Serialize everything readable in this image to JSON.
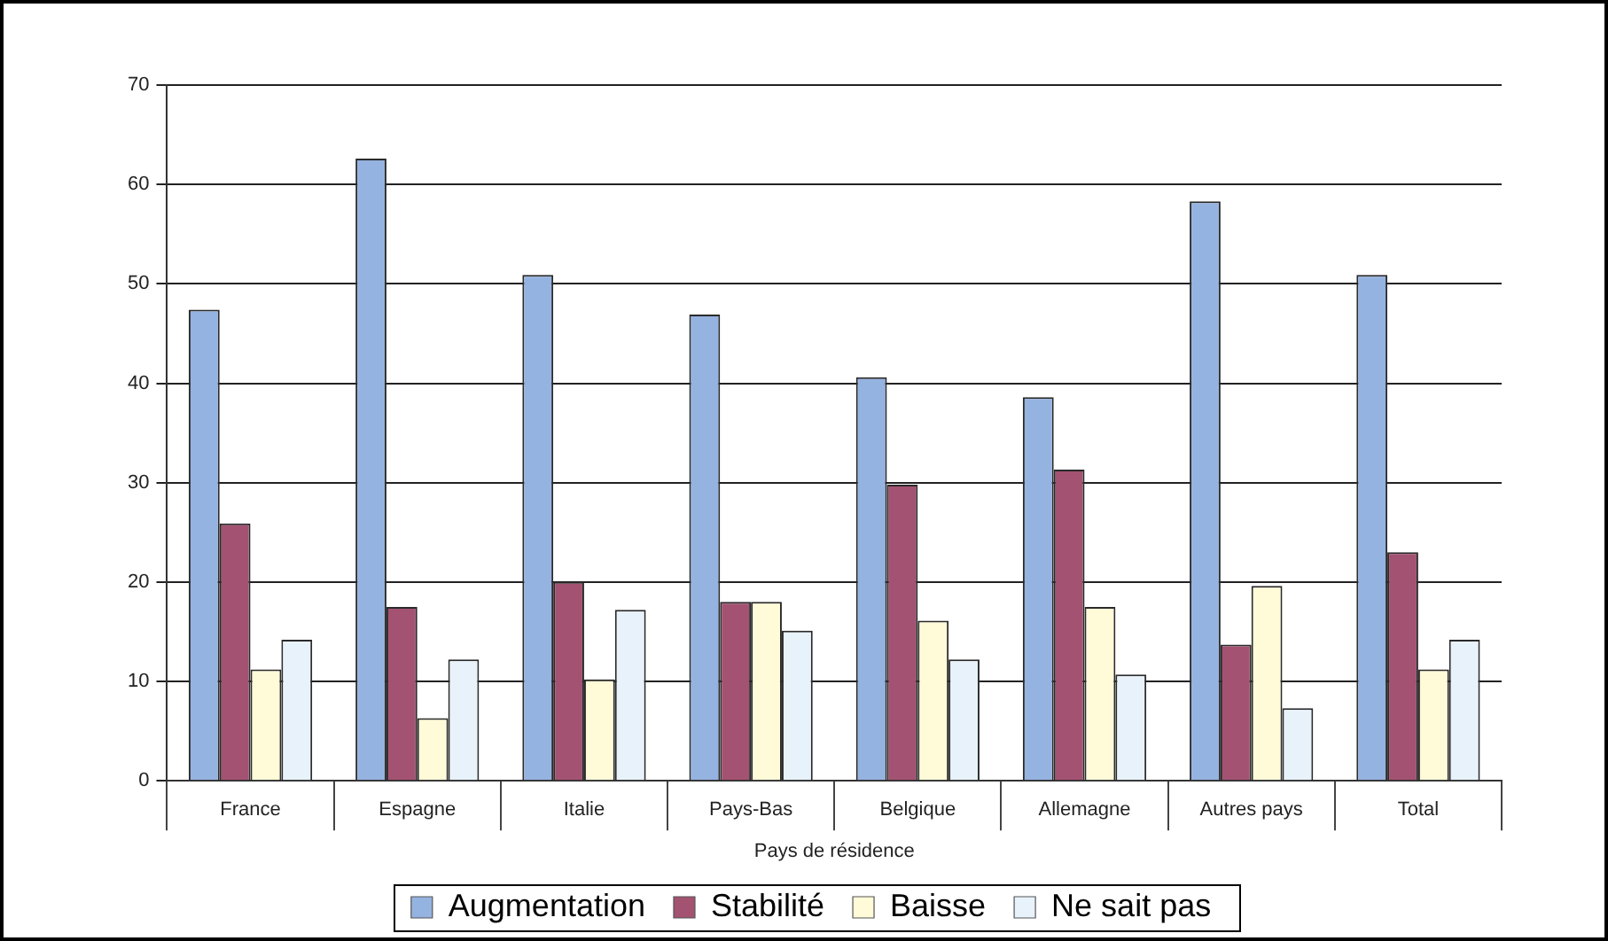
{
  "chart_data": {
    "type": "bar",
    "xlabel": "Pays de résidence",
    "categories": [
      "France",
      "Espagne",
      "Italie",
      "Pays-Bas",
      "Belgique",
      "Allemagne",
      "Autres pays",
      "Total"
    ],
    "series": [
      {
        "name": "Augmentation",
        "color": "#95b3e0",
        "values": [
          47.4,
          62.6,
          50.9,
          46.9,
          40.6,
          38.6,
          58.3,
          50.9
        ]
      },
      {
        "name": "Stabilité",
        "color": "#a35272",
        "values": [
          25.9,
          17.5,
          20.0,
          18.0,
          29.8,
          31.3,
          13.7,
          23.0
        ]
      },
      {
        "name": "Baisse",
        "color": "#fffad8",
        "values": [
          11.2,
          6.3,
          10.2,
          18.0,
          16.1,
          17.5,
          19.6,
          11.2
        ]
      },
      {
        "name": "Ne sait pas",
        "color": "#e8f2fb",
        "values": [
          14.2,
          12.2,
          17.2,
          15.1,
          12.2,
          10.7,
          7.3,
          14.2
        ]
      }
    ],
    "ylim": [
      0,
      70
    ],
    "yticks": [
      0,
      10,
      20,
      30,
      40,
      50,
      60,
      70
    ],
    "grid": "y",
    "legend": "bottom"
  }
}
